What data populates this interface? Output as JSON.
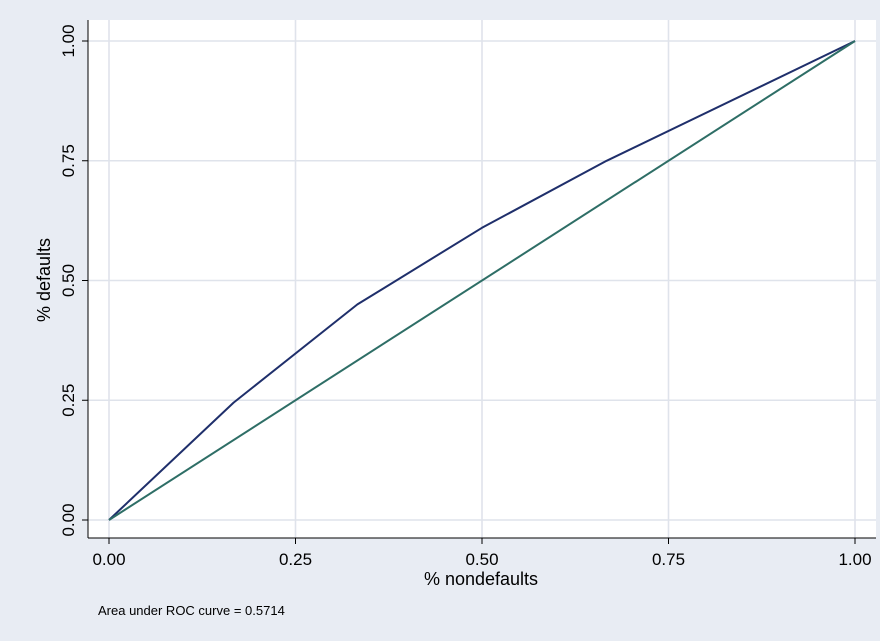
{
  "chart_data": {
    "type": "line",
    "title": "",
    "xlabel": "% nondefaults",
    "ylabel": "% defaults",
    "xlim": [
      0,
      1
    ],
    "ylim": [
      0,
      1
    ],
    "x_ticks": [
      "0.00",
      "0.25",
      "0.50",
      "0.75",
      "1.00"
    ],
    "y_ticks": [
      "0.00",
      "0.25",
      "0.50",
      "0.75",
      "1.00"
    ],
    "grid": true,
    "series": [
      {
        "color": "#1f2f6b",
        "points": [
          [
            0,
            0
          ],
          [
            0.167,
            0.245
          ],
          [
            0.333,
            0.45
          ],
          [
            0.5,
            0.61
          ],
          [
            0.667,
            0.75
          ],
          [
            1,
            1
          ]
        ]
      },
      {
        "color": "#2e6e66",
        "points": [
          [
            0,
            0
          ],
          [
            1,
            1
          ]
        ]
      }
    ],
    "note": "Area under ROC curve = 0.5714",
    "colors": {
      "background": "#e8ecf3",
      "plot_bg": "#ffffff",
      "grid": "#dfe3eb"
    }
  }
}
